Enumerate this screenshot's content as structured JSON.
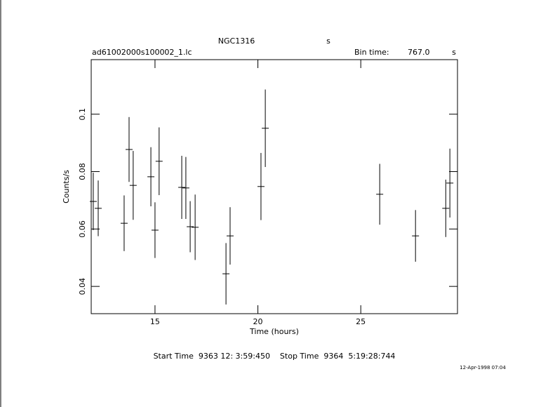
{
  "chart_data": {
    "type": "errorbar",
    "title": "NGC1316",
    "title_unit": "s",
    "file_name": "ad61002000s100002_1.lc",
    "bin_time_label": "Bin time:",
    "bin_time": "767.0",
    "bin_time_unit": "s",
    "xlabel": "Time (hours)",
    "ylabel": "Counts/s",
    "x": [
      12.0,
      12.24,
      13.5,
      13.74,
      13.94,
      14.8,
      15.0,
      15.2,
      16.3,
      16.5,
      16.71,
      16.95,
      18.45,
      18.65,
      20.15,
      20.36,
      25.92,
      27.66,
      29.13,
      29.33
    ],
    "x_errors": [
      0.17,
      0.17,
      0.17,
      0.17,
      0.17,
      0.17,
      0.17,
      0.17,
      0.17,
      0.17,
      0.17,
      0.17,
      0.17,
      0.17,
      0.17,
      0.17,
      0.17,
      0.17,
      0.17,
      0.17
    ],
    "values": [
      0.0696,
      0.0672,
      0.062,
      0.0877,
      0.0752,
      0.0782,
      0.0596,
      0.0836,
      0.0745,
      0.0743,
      0.0608,
      0.0606,
      0.0444,
      0.0576,
      0.0748,
      0.0951,
      0.0721,
      0.0576,
      0.0672,
      0.076
    ],
    "errors": [
      0.01,
      0.0097,
      0.0097,
      0.0113,
      0.012,
      0.0103,
      0.0097,
      0.0118,
      0.011,
      0.0108,
      0.0089,
      0.0114,
      0.0107,
      0.01,
      0.0117,
      0.0135,
      0.0106,
      0.009,
      0.01,
      0.012
    ],
    "color": "#000000",
    "xlim": [
      11.9,
      29.7
    ],
    "xticks": [
      15,
      20,
      25
    ],
    "ylim": [
      0.0305,
      0.119
    ],
    "yticks": [
      0.04,
      0.06,
      0.08,
      0.1
    ],
    "footer": "Start Time  9363 12: 3:59:450    Stop Time  9364  5:19:28:744",
    "date_stamp": "12-Apr-1998 07:04"
  }
}
